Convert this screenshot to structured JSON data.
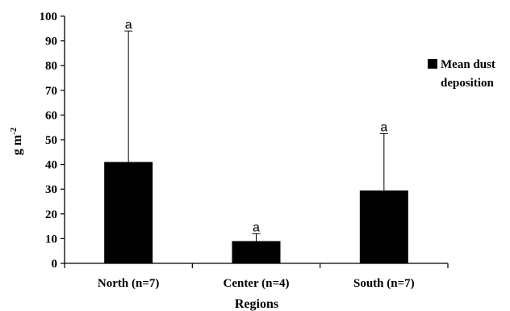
{
  "chart_data": {
    "type": "bar",
    "categories": [
      "North (n=7)",
      "Center (n=4)",
      "South (n=7)"
    ],
    "series": [
      {
        "name": "Mean dust deposition",
        "values": [
          41,
          9,
          29.5
        ]
      }
    ],
    "error_upper": [
      94,
      12,
      52.5
    ],
    "significance_labels": [
      "a",
      "a",
      "a"
    ],
    "xlabel": "Regions",
    "ylabel": "g m",
    "ylabel_superscript": "-2",
    "ylim": [
      0,
      100
    ],
    "yticks": [
      0,
      10,
      20,
      30,
      40,
      50,
      60,
      70,
      80,
      90,
      100
    ],
    "legend_lines": [
      "Mean dust",
      "deposition"
    ],
    "legend_position": "right",
    "grid": false,
    "bar_color": "#000000"
  }
}
